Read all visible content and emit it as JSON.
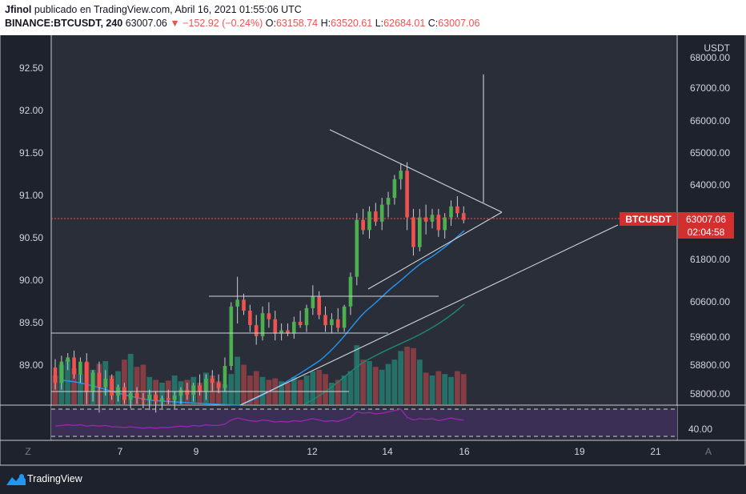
{
  "header": {
    "author": "Jfinol",
    "published": "publicado en TradingView.com, Abril 16, 2021 01:55:06 UTC",
    "symbol": "BINANCE:BTCUSDT, 240",
    "price": "63007.06",
    "change": "▼ −152.92 (−0.24%)",
    "o_label": "O:",
    "o_val": "63158.74",
    "h_label": "H:",
    "h_val": "63520.61",
    "l_label": "L:",
    "l_val": "62684.01",
    "c_label": "C:",
    "c_val": "63007.06"
  },
  "chart_data": {
    "type": "candlestick",
    "currency_label": "USDT",
    "left_axis_ticks": [
      "92.50",
      "92.00",
      "91.50",
      "91.00",
      "90.50",
      "90.00",
      "89.50",
      "89.00"
    ],
    "right_axis_ticks": [
      "68000.00",
      "67000.00",
      "66000.00",
      "65000.00",
      "64000.00",
      "61800.00",
      "60600.00",
      "59600.00",
      "58800.00",
      "58000.00"
    ],
    "x_ticks": [
      "7",
      "9",
      "12",
      "14",
      "16",
      "19",
      "21"
    ],
    "rsi_tick": "40.00",
    "corner_left": "Z",
    "corner_right": "A",
    "symbol_tag": "BTCUSDT",
    "last_price": "63007.06",
    "countdown": "02:04:58",
    "candles": [
      [
        88.98,
        89.08,
        88.72,
        88.8
      ],
      [
        88.8,
        89.12,
        88.72,
        89.05
      ],
      [
        89.05,
        89.15,
        88.95,
        89.1
      ],
      [
        89.1,
        89.18,
        88.85,
        88.9
      ],
      [
        88.9,
        89.1,
        88.8,
        89.05
      ],
      [
        89.05,
        89.15,
        88.55,
        88.7
      ],
      [
        88.7,
        88.95,
        88.58,
        88.92
      ],
      [
        88.92,
        89.05,
        88.45,
        88.75
      ],
      [
        88.75,
        88.95,
        88.65,
        88.85
      ],
      [
        88.85,
        88.9,
        88.6,
        88.65
      ],
      [
        88.65,
        88.78,
        88.58,
        88.75
      ],
      [
        88.75,
        88.8,
        88.55,
        88.6
      ],
      [
        88.6,
        88.7,
        88.5,
        88.68
      ],
      [
        88.68,
        88.75,
        88.55,
        88.62
      ],
      [
        88.62,
        88.68,
        88.5,
        88.6
      ],
      [
        88.6,
        88.72,
        88.48,
        88.66
      ],
      [
        88.66,
        88.7,
        88.45,
        88.58
      ],
      [
        88.58,
        88.65,
        88.5,
        88.62
      ],
      [
        88.62,
        88.72,
        88.55,
        88.6
      ],
      [
        88.6,
        88.7,
        88.5,
        88.65
      ],
      [
        88.65,
        88.75,
        88.55,
        88.72
      ],
      [
        88.72,
        88.8,
        88.6,
        88.66
      ],
      [
        88.66,
        88.8,
        88.58,
        88.77
      ],
      [
        88.77,
        88.9,
        88.65,
        88.7
      ],
      [
        88.7,
        88.9,
        88.6,
        88.85
      ],
      [
        88.85,
        88.95,
        88.7,
        88.8
      ],
      [
        88.8,
        88.9,
        88.68,
        88.74
      ],
      [
        88.74,
        89.1,
        88.7,
        89.0
      ],
      [
        89.0,
        89.75,
        88.95,
        89.7
      ],
      [
        89.7,
        90.05,
        89.5,
        89.78
      ],
      [
        89.78,
        89.85,
        89.6,
        89.65
      ],
      [
        89.65,
        89.72,
        89.4,
        89.48
      ],
      [
        89.48,
        89.6,
        89.25,
        89.35
      ],
      [
        89.35,
        89.7,
        89.3,
        89.62
      ],
      [
        89.62,
        89.75,
        89.45,
        89.55
      ],
      [
        89.55,
        89.65,
        89.3,
        89.38
      ],
      [
        89.38,
        89.5,
        89.3,
        89.42
      ],
      [
        89.42,
        89.5,
        89.35,
        89.38
      ],
      [
        89.38,
        89.58,
        89.32,
        89.52
      ],
      [
        89.52,
        89.65,
        89.45,
        89.48
      ],
      [
        89.48,
        89.72,
        89.4,
        89.68
      ],
      [
        89.68,
        89.95,
        89.6,
        89.82
      ],
      [
        89.82,
        89.88,
        89.55,
        89.6
      ],
      [
        89.6,
        89.7,
        89.4,
        89.48
      ],
      [
        89.48,
        89.62,
        89.38,
        89.55
      ],
      [
        89.55,
        89.68,
        89.4,
        89.45
      ],
      [
        89.45,
        89.72,
        89.4,
        89.7
      ],
      [
        89.7,
        90.1,
        89.6,
        90.05
      ],
      [
        90.05,
        90.8,
        89.95,
        90.72
      ],
      [
        90.72,
        90.85,
        90.55,
        90.6
      ],
      [
        90.6,
        90.88,
        90.5,
        90.82
      ],
      [
        90.82,
        90.92,
        90.65,
        90.7
      ],
      [
        90.7,
        90.98,
        90.6,
        90.9
      ],
      [
        90.9,
        91.05,
        90.75,
        90.98
      ],
      [
        90.98,
        91.25,
        90.9,
        91.2
      ],
      [
        91.2,
        91.38,
        91.08,
        91.3
      ],
      [
        91.3,
        91.4,
        90.6,
        90.75
      ],
      [
        90.75,
        90.85,
        90.3,
        90.4
      ],
      [
        90.4,
        90.85,
        90.35,
        90.75
      ],
      [
        90.75,
        90.9,
        90.55,
        90.7
      ],
      [
        90.7,
        90.85,
        90.62,
        90.78
      ],
      [
        90.78,
        90.85,
        90.52,
        90.6
      ],
      [
        90.6,
        90.8,
        90.5,
        90.75
      ],
      [
        90.75,
        90.95,
        90.65,
        90.88
      ],
      [
        90.88,
        91.0,
        90.75,
        90.8
      ],
      [
        90.8,
        90.88,
        90.68,
        90.72
      ]
    ],
    "volumes": [
      0.4,
      0.55,
      0.62,
      0.5,
      0.42,
      0.58,
      0.48,
      0.56,
      0.6,
      0.4,
      0.46,
      0.62,
      0.7,
      0.52,
      0.55,
      0.38,
      0.34,
      0.3,
      0.33,
      0.4,
      0.32,
      0.34,
      0.38,
      0.3,
      0.44,
      0.4,
      0.32,
      0.28,
      0.42,
      0.66,
      0.55,
      0.4,
      0.46,
      0.38,
      0.34,
      0.36,
      0.32,
      0.3,
      0.38,
      0.34,
      0.4,
      0.46,
      0.48,
      0.42,
      0.3,
      0.34,
      0.4,
      0.46,
      0.82,
      0.62,
      0.6,
      0.52,
      0.48,
      0.56,
      0.62,
      0.74,
      0.8,
      0.78,
      0.62,
      0.44,
      0.4,
      0.46,
      0.42,
      0.38,
      0.46,
      0.42
    ],
    "rsi": [
      45,
      46,
      47,
      46,
      47,
      45,
      46,
      45,
      46,
      44,
      44,
      43,
      44,
      43,
      42,
      43,
      42,
      43,
      43,
      44,
      45,
      44,
      46,
      45,
      47,
      46,
      46,
      48,
      54,
      57,
      55,
      53,
      52,
      54,
      53,
      51,
      52,
      51,
      53,
      52,
      54,
      56,
      54,
      52,
      53,
      52,
      55,
      58,
      66,
      64,
      65,
      63,
      64,
      66,
      68,
      70,
      58,
      54,
      56,
      55,
      56,
      53,
      55,
      57,
      55,
      54
    ]
  }
}
